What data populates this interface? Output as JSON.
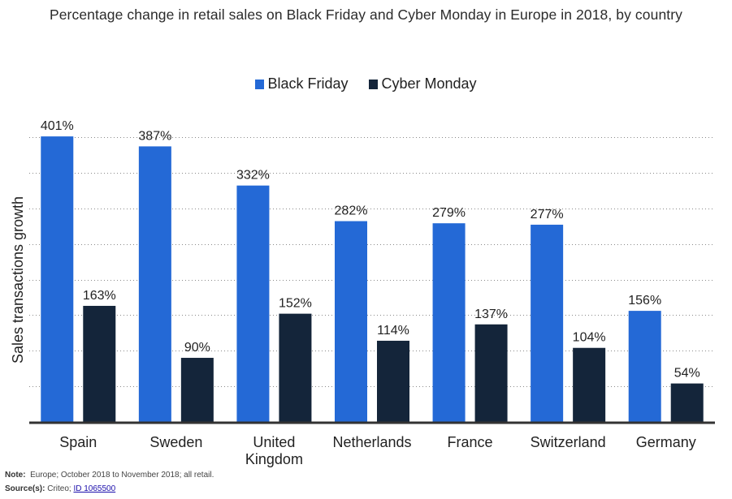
{
  "chart_data": {
    "type": "bar",
    "title": "Percentage change in retail sales on Black Friday and Cyber Monday in Europe in 2018, by country",
    "xlabel": "",
    "ylabel": "Sales transactions growth",
    "categories": [
      "Spain",
      "Sweden",
      "United Kingdom",
      "Netherlands",
      "France",
      "Switzerland",
      "Germany"
    ],
    "category_lines": [
      [
        "Spain"
      ],
      [
        "Sweden"
      ],
      [
        "United",
        "Kingdom"
      ],
      [
        "Netherlands"
      ],
      [
        "France"
      ],
      [
        "Switzerland"
      ],
      [
        "Germany"
      ]
    ],
    "series": [
      {
        "name": "Black Friday",
        "color": "#2469d6",
        "values": [
          401,
          387,
          332,
          282,
          279,
          277,
          156
        ]
      },
      {
        "name": "Cyber Monday",
        "color": "#14253a",
        "values": [
          163,
          90,
          152,
          114,
          137,
          104,
          54
        ]
      }
    ],
    "value_suffix": "%",
    "ylim": [
      0,
      400
    ],
    "ytick_step": 50,
    "yticks_labeled": false,
    "grid": true,
    "legend_position": "top-center",
    "data_labels": true
  },
  "footer": {
    "note_label": "Note:",
    "note_text": "Europe; October 2018 to November 2018; all retail.",
    "source_label": "Source(s):",
    "source_text": "Criteo;",
    "source_link": "ID 1065500"
  }
}
